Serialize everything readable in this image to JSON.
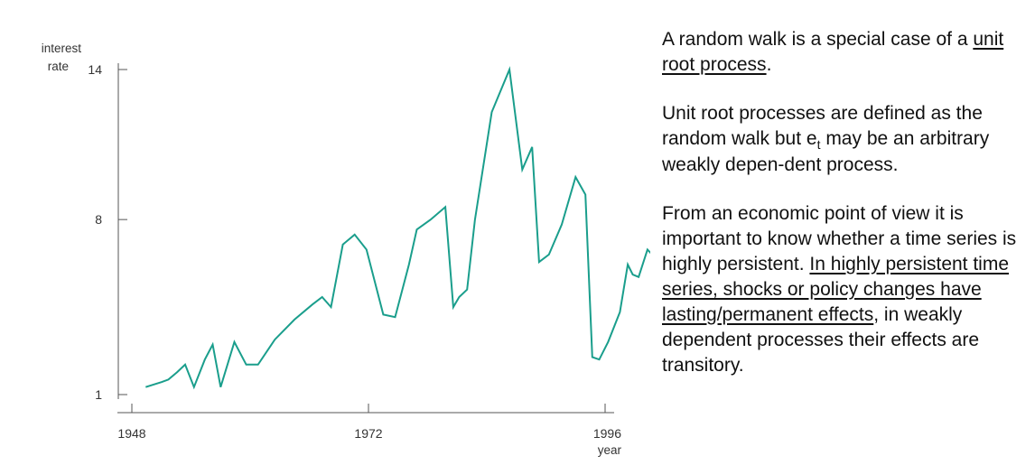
{
  "chart_data": {
    "type": "line",
    "title": "",
    "ylabel_line1": "interest",
    "ylabel_line2": "rate",
    "xlabel": "year",
    "xlim": [
      1948,
      1996
    ],
    "ylim": [
      1,
      14
    ],
    "y_ticks": [
      {
        "value": 1,
        "label": "1"
      },
      {
        "value": 8,
        "label": "8"
      },
      {
        "value": 14,
        "label": "14"
      }
    ],
    "x_ticks": [
      {
        "value": 1948,
        "label": "1948"
      },
      {
        "value": 1972,
        "label": "1972"
      },
      {
        "value": 1996,
        "label": "1996"
      }
    ],
    "grid": false,
    "series": [
      {
        "color": "#1a9e8c",
        "x": [
          1949.4,
          1950.2,
          1951.0,
          1951.7,
          1952.6,
          1953.4,
          1954.3,
          1955.4,
          1956.2,
          1957.0,
          1958.4,
          1959.6,
          1960.8,
          1962.5,
          1964.5,
          1966.3,
          1967.3,
          1968.2,
          1969.4,
          1970.6,
          1971.8,
          1973.5,
          1974.7,
          1976.1,
          1976.9,
          1978.3,
          1979.8,
          1980.6,
          1981.2,
          1982.0,
          1982.8,
          1984.5,
          1986.3,
          1987.6,
          1988.6,
          1989.3,
          1990.3,
          1991.6,
          1993.0,
          1994.0,
          1994.7,
          1995.4,
          1996.3,
          1997.5,
          1998.3,
          1998.8,
          1999.4,
          2000.3,
          2001.5
        ],
        "y": [
          1.3,
          1.4,
          1.5,
          1.6,
          1.9,
          2.2,
          1.3,
          2.4,
          3.0,
          1.3,
          3.1,
          2.2,
          2.2,
          3.2,
          4.0,
          4.6,
          4.9,
          4.5,
          7.0,
          7.4,
          6.8,
          4.2,
          4.1,
          6.2,
          7.6,
          8.0,
          8.5,
          4.5,
          4.9,
          5.2,
          8.0,
          12.3,
          14.0,
          10.0,
          10.9,
          6.3,
          6.6,
          7.8,
          9.7,
          9.0,
          2.5,
          2.4,
          3.1,
          4.3,
          6.2,
          5.8,
          5.7,
          6.8,
          6.3
        ]
      }
    ]
  },
  "text_panel": {
    "p1_a": "A random walk is a special case of a ",
    "p1_link": "unit root process",
    "p1_b": ".",
    "p2_a": "Unit root processes are defined as the random walk but e",
    "p2_sub": "t",
    "p2_b": " may be an arbitrary weakly depen-dent process.",
    "p3_a": "From an economic point of view it is important to know whether a time series is highly persistent. ",
    "p3_u": "In highly persistent time series, shocks or policy changes have lasting/permanent effects",
    "p3_b": ", in weakly dependent processes their effects are transitory."
  }
}
